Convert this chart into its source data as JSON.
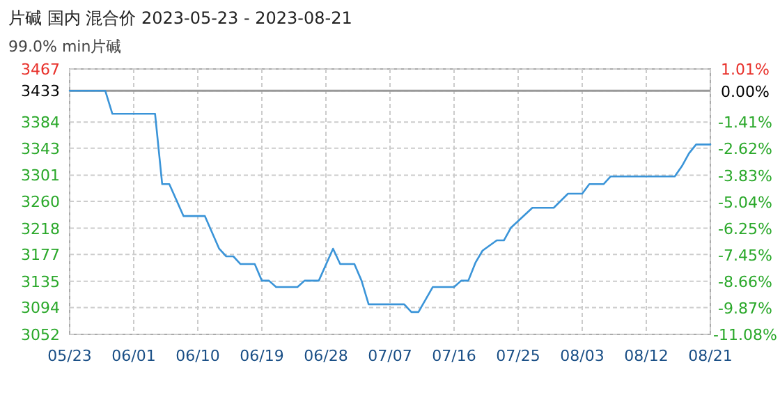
{
  "chart_data": {
    "type": "line",
    "title": "片碱 国内 混合价 2023-05-23 - 2023-08-21",
    "subtitle": "99.0% min片碱",
    "x": [
      "2023-05-23",
      "2023-05-28",
      "2023-05-29",
      "2023-06-04",
      "2023-06-05",
      "2023-06-06",
      "2023-06-08",
      "2023-06-11",
      "2023-06-13",
      "2023-06-14",
      "2023-06-15",
      "2023-06-16",
      "2023-06-18",
      "2023-06-19",
      "2023-06-20",
      "2023-06-21",
      "2023-06-24",
      "2023-06-25",
      "2023-06-27",
      "2023-06-29",
      "2023-06-30",
      "2023-07-02",
      "2023-07-03",
      "2023-07-04",
      "2023-07-09",
      "2023-07-10",
      "2023-07-11",
      "2023-07-13",
      "2023-07-16",
      "2023-07-17",
      "2023-07-18",
      "2023-07-19",
      "2023-07-20",
      "2023-07-22",
      "2023-07-23",
      "2023-07-24",
      "2023-07-27",
      "2023-07-30",
      "2023-08-01",
      "2023-08-03",
      "2023-08-04",
      "2023-08-06",
      "2023-08-07",
      "2023-08-16",
      "2023-08-17",
      "2023-08-18",
      "2023-08-19",
      "2023-08-21"
    ],
    "series": [
      {
        "color": "#3a94d8",
        "values": [
          3433,
          3433,
          3397,
          3397,
          3287,
          3287,
          3237,
          3237,
          3186,
          3174,
          3174,
          3162,
          3162,
          3136,
          3136,
          3126,
          3126,
          3136,
          3136,
          3186,
          3162,
          3162,
          3136,
          3099,
          3099,
          3087,
          3087,
          3126,
          3126,
          3136,
          3136,
          3164,
          3183,
          3199,
          3199,
          3219,
          3250,
          3250,
          3272,
          3272,
          3287,
          3287,
          3299,
          3299,
          3315,
          3335,
          3349,
          3349
        ]
      }
    ],
    "xlim": [
      "2023-05-23",
      "2023-08-21"
    ],
    "xticks": [
      {
        "value": "2023-05-23",
        "label": "05/23"
      },
      {
        "value": "2023-06-01",
        "label": "06/01"
      },
      {
        "value": "2023-06-10",
        "label": "06/10"
      },
      {
        "value": "2023-06-19",
        "label": "06/19"
      },
      {
        "value": "2023-06-28",
        "label": "06/28"
      },
      {
        "value": "2023-07-07",
        "label": "07/07"
      },
      {
        "value": "2023-07-16",
        "label": "07/16"
      },
      {
        "value": "2023-07-25",
        "label": "07/25"
      },
      {
        "value": "2023-08-03",
        "label": "08/03"
      },
      {
        "value": "2023-08-12",
        "label": "08/12"
      },
      {
        "value": "2023-08-21",
        "label": "08/21"
      }
    ],
    "ylim": [
      3052,
      3467
    ],
    "yticks": [
      3052,
      3094,
      3135,
      3177,
      3218,
      3260,
      3301,
      3343,
      3384,
      3433,
      3467
    ],
    "y2lim": [
      -11.08,
      1.01
    ],
    "y2ticks": [
      {
        "value": -11.08,
        "label": "-11.08%"
      },
      {
        "value": -9.87,
        "label": "-9.87%"
      },
      {
        "value": -8.66,
        "label": "-8.66%"
      },
      {
        "value": -7.45,
        "label": "-7.45%"
      },
      {
        "value": -6.25,
        "label": "-6.25%"
      },
      {
        "value": -5.04,
        "label": "-5.04%"
      },
      {
        "value": -3.83,
        "label": "-3.83%"
      },
      {
        "value": -2.62,
        "label": "-2.62%"
      },
      {
        "value": -1.41,
        "label": "-1.41%"
      },
      {
        "value": 0,
        "label": "0.00%"
      },
      {
        "value": 1.01,
        "label": "1.01%"
      }
    ],
    "ref_lines": [
      {
        "axis": "y",
        "value": 3433,
        "color": "#999999"
      }
    ],
    "grid": true,
    "marker": "none",
    "line_style": "solid"
  }
}
